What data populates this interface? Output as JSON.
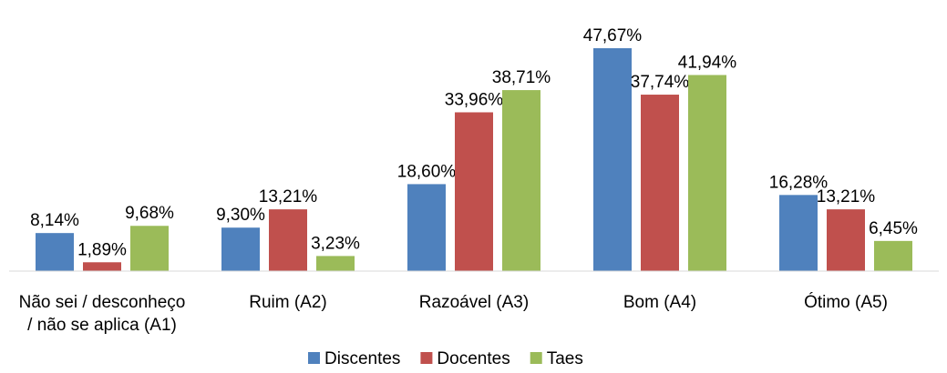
{
  "chart_data": {
    "type": "bar",
    "categories": [
      "Não sei / desconheço / não se aplica (A1)",
      "Ruim (A2)",
      "Razoável (A3)",
      "Bom (A4)",
      "Ótimo (A5)"
    ],
    "series": [
      {
        "name": "Discentes",
        "color": "#4f81bd",
        "values": [
          8.14,
          9.3,
          18.6,
          47.67,
          16.28
        ],
        "value_labels": [
          "8,14%",
          "9,30%",
          "18,60%",
          "47,67%",
          "16,28%"
        ]
      },
      {
        "name": "Docentes",
        "color": "#c0504d",
        "values": [
          1.89,
          13.21,
          33.96,
          37.74,
          13.21
        ],
        "value_labels": [
          "1,89%",
          "13,21%",
          "33,96%",
          "37,74%",
          "13,21%"
        ]
      },
      {
        "name": "Taes",
        "color": "#9bbb59",
        "values": [
          9.68,
          3.23,
          38.71,
          41.94,
          6.45
        ],
        "value_labels": [
          "9,68%",
          "3,23%",
          "38,71%",
          "41,94%",
          "6,45%"
        ]
      }
    ],
    "legend": "bottom"
  }
}
